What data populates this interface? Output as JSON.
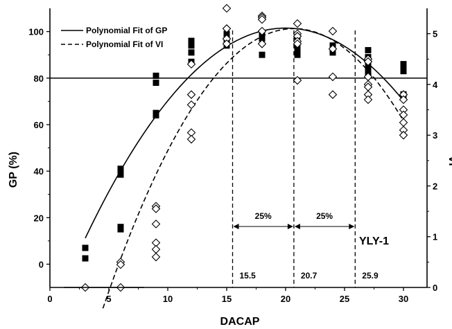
{
  "chart_data": {
    "type": "scatter",
    "xlabel": "DACAP",
    "ylabel_left": "GP (%)",
    "ylabel_right": "VI",
    "xlim": [
      0,
      32
    ],
    "ylim_left": [
      -10,
      110
    ],
    "ylim_right": [
      0,
      5.5
    ],
    "xticks": [
      "0",
      "5",
      "10",
      "15",
      "20",
      "25",
      "30"
    ],
    "yticks_left": [
      "0",
      "20",
      "40",
      "60",
      "80",
      "100"
    ],
    "yticks_right": [
      "0",
      "1",
      "2",
      "3",
      "4",
      "5"
    ],
    "grid": false,
    "legend": {
      "placement": "top-left",
      "entries": [
        "Polynomial Fit of GP",
        "Polynomial Fit of VI"
      ]
    },
    "label_id": "YLY-1",
    "reference_line_gp": 80,
    "vertical_lines": [
      {
        "x": 15.5,
        "label": "15.5"
      },
      {
        "x": 20.7,
        "label": "20.7"
      },
      {
        "x": 25.9,
        "label": "25.9"
      }
    ],
    "spans": [
      {
        "from": 15.5,
        "to": 20.7,
        "label": "25%"
      },
      {
        "from": 20.7,
        "to": 25.9,
        "label": "25%"
      }
    ],
    "series": [
      {
        "marker": "filled-square",
        "axis": "left",
        "points": [
          [
            3,
            7
          ],
          [
            3,
            2.5
          ],
          [
            6,
            41
          ],
          [
            6,
            39.5
          ],
          [
            6,
            38.5
          ],
          [
            6,
            16
          ],
          [
            6,
            15
          ],
          [
            9,
            81
          ],
          [
            9,
            78
          ],
          [
            9,
            65
          ],
          [
            9,
            64
          ],
          [
            12,
            96
          ],
          [
            12,
            94
          ],
          [
            12,
            91
          ],
          [
            12,
            87
          ],
          [
            15,
            99
          ],
          [
            15,
            97
          ],
          [
            15,
            95
          ],
          [
            15,
            94
          ],
          [
            18,
            99
          ],
          [
            18,
            97
          ],
          [
            18,
            90
          ],
          [
            21,
            98
          ],
          [
            21,
            95
          ],
          [
            21,
            93
          ],
          [
            21,
            91
          ],
          [
            21,
            90
          ],
          [
            24,
            94
          ],
          [
            24,
            91
          ],
          [
            27,
            92
          ],
          [
            27,
            89
          ],
          [
            27,
            86
          ],
          [
            27,
            84
          ],
          [
            27,
            82
          ],
          [
            30,
            86
          ],
          [
            30,
            85
          ],
          [
            30,
            83
          ],
          [
            30,
            73
          ],
          [
            30,
            72
          ]
        ]
      },
      {
        "marker": "open-diamond",
        "axis": "right",
        "points": [
          [
            3,
            0
          ],
          [
            6,
            0.5
          ],
          [
            6,
            0.45
          ],
          [
            6,
            0
          ],
          [
            9,
            1.6
          ],
          [
            9,
            1.55
          ],
          [
            9,
            1.25
          ],
          [
            9,
            0.88
          ],
          [
            9,
            0.75
          ],
          [
            9,
            0.6
          ],
          [
            12,
            4.4
          ],
          [
            12,
            3.8
          ],
          [
            12,
            3.6
          ],
          [
            12,
            3.05
          ],
          [
            12,
            2.92
          ],
          [
            15,
            5.5
          ],
          [
            15,
            5.1
          ],
          [
            15,
            4.9
          ],
          [
            15,
            4.8
          ],
          [
            18,
            5.35
          ],
          [
            18,
            5.32
          ],
          [
            18,
            5.28
          ],
          [
            18,
            5.05
          ],
          [
            18,
            4.8
          ],
          [
            21,
            5.2
          ],
          [
            21,
            5.0
          ],
          [
            21,
            4.95
          ],
          [
            21,
            4.85
          ],
          [
            21,
            4.8
          ],
          [
            21,
            4.08
          ],
          [
            24,
            5.05
          ],
          [
            24,
            4.7
          ],
          [
            24,
            4.15
          ],
          [
            24,
            3.8
          ],
          [
            27,
            4.5
          ],
          [
            27,
            4.45
          ],
          [
            27,
            4.15
          ],
          [
            27,
            4.0
          ],
          [
            27,
            3.95
          ],
          [
            27,
            3.8
          ],
          [
            27,
            3.7
          ],
          [
            30,
            3.8
          ],
          [
            30,
            3.7
          ],
          [
            30,
            3.5
          ],
          [
            30,
            3.4
          ],
          [
            30,
            3.25
          ],
          [
            30,
            3.1
          ],
          [
            30,
            3.0
          ]
        ]
      }
    ],
    "fits": [
      {
        "name": "Polynomial Fit of GP",
        "style": "solid",
        "axis": "left",
        "vertex_x": 20,
        "vertex_y": 101.5,
        "a": -0.3125,
        "x_range": [
          3,
          30
        ]
      },
      {
        "name": "Polynomial Fit of VI",
        "style": "dashed",
        "axis": "right",
        "vertex_x": 20.7,
        "vertex_y": 5.1,
        "a": -0.021,
        "x_range": [
          4.5,
          30
        ]
      }
    ]
  }
}
